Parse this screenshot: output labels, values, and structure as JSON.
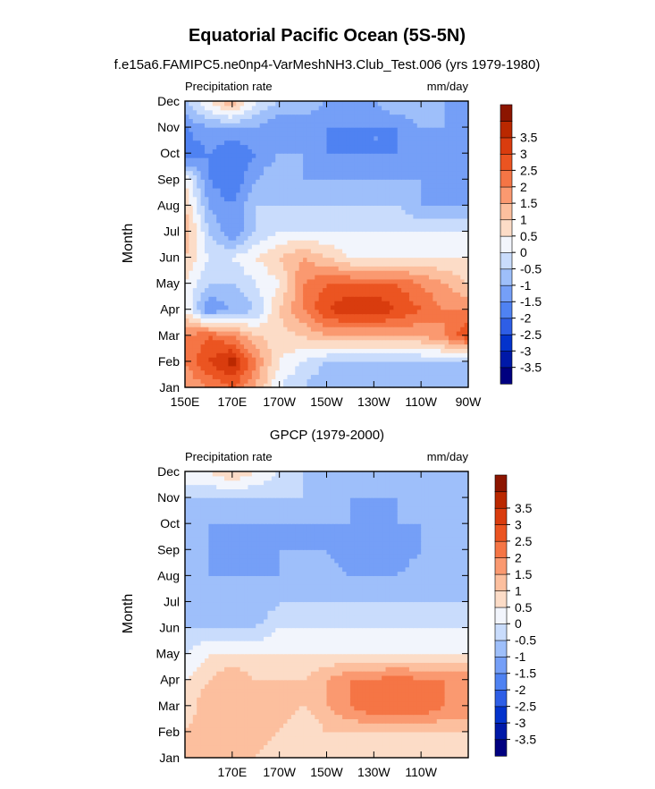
{
  "title": "Equatorial Pacific Ocean (5S-5N)",
  "colors": {
    "levels": [
      "#000080",
      "#0019A8",
      "#0333CC",
      "#2E5EE6",
      "#4F82F2",
      "#759FF7",
      "#9EBFFA",
      "#C9DCFC",
      "#F2F5FC",
      "#FCDCC7",
      "#FCBF9E",
      "#FA9970",
      "#F57545",
      "#EB5421",
      "#D93C0E",
      "#BA2800",
      "#8C1500"
    ],
    "level_bounds": [
      -3.5,
      -3,
      -2.5,
      -2,
      -1.5,
      -1,
      -0.5,
      0,
      0.5,
      1,
      1.5,
      2,
      2.5,
      3,
      3.5
    ]
  },
  "chart_data": [
    {
      "type": "heatmap",
      "title": "f.e15a6.FAMIPC5.ne0np4-VarMeshNH3.Club_Test.006 (yrs 1979-1980)",
      "left_label": "Precipitation rate",
      "right_label": "mm/day",
      "ylabel": "Month",
      "x_ticks": [
        "150E",
        "170E",
        "170W",
        "150W",
        "130W",
        "110W",
        "90W"
      ],
      "y_ticks": [
        "Jan",
        "Feb",
        "Mar",
        "Apr",
        "May",
        "Jun",
        "Jul",
        "Aug",
        "Sep",
        "Oct",
        "Nov",
        "Dec"
      ],
      "colorbar_ticks": [
        "-3.5",
        "-3",
        "-2.5",
        "-2",
        "-1.5",
        "-1",
        "-0.5",
        "0",
        "0.5",
        "1",
        "1.5",
        "2",
        "2.5",
        "3",
        "3.5"
      ],
      "x": [
        150,
        160,
        170,
        180,
        190,
        200,
        210,
        220,
        230,
        240,
        250,
        260,
        270
      ],
      "months": [
        "Jan",
        "Feb",
        "Mar",
        "Apr",
        "May",
        "Jun",
        "Jul",
        "Aug",
        "Sep",
        "Oct",
        "Nov",
        "Dec"
      ],
      "values": [
        [
          1.5,
          2.0,
          2.5,
          1.5,
          0.0,
          -0.5,
          -1.0,
          -1.0,
          -1.0,
          -1.0,
          -1.0,
          -1.0,
          -1.0
        ],
        [
          2.0,
          3.0,
          3.8,
          2.0,
          0.5,
          0.0,
          -0.5,
          -0.5,
          -0.5,
          -0.5,
          -0.5,
          -0.5,
          -0.5
        ],
        [
          2.0,
          2.5,
          2.0,
          1.0,
          0.8,
          1.0,
          1.5,
          1.5,
          1.5,
          1.5,
          1.5,
          2.0,
          3.0
        ],
        [
          0.5,
          -1.5,
          -1.0,
          -0.5,
          1.0,
          2.0,
          3.0,
          3.5,
          3.5,
          3.0,
          2.5,
          2.0,
          2.0
        ],
        [
          0.5,
          -0.5,
          -0.5,
          0.0,
          0.5,
          2.0,
          2.5,
          2.5,
          2.5,
          2.5,
          2.0,
          1.5,
          1.0
        ],
        [
          1.0,
          0.0,
          0.0,
          0.5,
          1.0,
          1.5,
          1.0,
          0.5,
          0.5,
          0.5,
          0.5,
          0.5,
          0.5
        ],
        [
          1.5,
          -0.5,
          -1.5,
          -0.5,
          0.0,
          0.0,
          0.0,
          0.0,
          0.0,
          0.0,
          0.0,
          0.0,
          0.0
        ],
        [
          1.0,
          -1.0,
          -1.5,
          -0.5,
          -0.5,
          -0.5,
          -0.5,
          -0.5,
          -0.5,
          -0.5,
          -1.0,
          -1.0,
          -1.0
        ],
        [
          0.5,
          -1.5,
          -2.0,
          -1.0,
          -0.5,
          -1.0,
          -1.0,
          -1.0,
          -1.0,
          -1.0,
          -1.0,
          -1.0,
          -1.0
        ],
        [
          -2.0,
          -1.5,
          -2.0,
          -1.5,
          -1.0,
          -1.0,
          -1.5,
          -1.5,
          -1.5,
          -1.5,
          -1.0,
          -1.0,
          -1.0
        ],
        [
          -1.5,
          -1.0,
          -1.0,
          -1.0,
          -1.5,
          -1.5,
          -1.5,
          -1.5,
          -1.5,
          -1.5,
          -1.0,
          -1.0,
          -1.0
        ],
        [
          -0.5,
          0.5,
          1.5,
          0.0,
          -0.5,
          -0.5,
          -1.0,
          -1.0,
          -1.0,
          -0.5,
          -0.5,
          -1.0,
          -1.0
        ]
      ]
    },
    {
      "type": "heatmap",
      "title": "GPCP (1979-2000)",
      "left_label": "Precipitation rate",
      "right_label": "mm/day",
      "ylabel": "Month",
      "x_ticks": [
        "170E",
        "170W",
        "150W",
        "130W",
        "110W"
      ],
      "y_ticks": [
        "Jan",
        "Feb",
        "Mar",
        "Apr",
        "May",
        "Jun",
        "Jul",
        "Aug",
        "Sep",
        "Oct",
        "Nov",
        "Dec"
      ],
      "colorbar_ticks": [
        "-3.5",
        "-3",
        "-2.5",
        "-2",
        "-1.5",
        "-1",
        "-0.5",
        "0",
        "0.5",
        "1",
        "1.5",
        "2",
        "2.5",
        "3",
        "3.5"
      ],
      "x": [
        150,
        160,
        170,
        180,
        190,
        200,
        210,
        220,
        230,
        240,
        250,
        260,
        270
      ],
      "months": [
        "Jan",
        "Feb",
        "Mar",
        "Apr",
        "May",
        "Jun",
        "Jul",
        "Aug",
        "Sep",
        "Oct",
        "Nov",
        "Dec"
      ],
      "values": [
        [
          1.0,
          1.5,
          1.5,
          1.0,
          0.5,
          0.5,
          0.5,
          0.5,
          0.5,
          0.5,
          0.5,
          0.5,
          0.5
        ],
        [
          1.0,
          1.5,
          1.5,
          1.5,
          1.0,
          0.5,
          1.0,
          1.0,
          1.0,
          1.0,
          1.0,
          1.0,
          1.0
        ],
        [
          0.5,
          1.5,
          1.5,
          1.5,
          1.5,
          1.0,
          1.5,
          2.0,
          2.5,
          2.5,
          2.5,
          2.0,
          2.0
        ],
        [
          0.5,
          1.0,
          1.5,
          1.0,
          1.0,
          1.0,
          1.5,
          2.0,
          2.0,
          2.5,
          2.0,
          2.0,
          2.0
        ],
        [
          0.0,
          0.5,
          0.5,
          0.5,
          0.5,
          0.5,
          0.5,
          0.5,
          0.5,
          0.5,
          0.5,
          0.5,
          0.5
        ],
        [
          -0.5,
          -0.5,
          -0.5,
          -0.5,
          0.0,
          0.0,
          0.0,
          0.0,
          0.0,
          0.0,
          0.0,
          0.0,
          0.0
        ],
        [
          -1.0,
          -0.5,
          -0.5,
          -1.0,
          -0.5,
          -0.5,
          -0.5,
          -0.5,
          -0.5,
          -0.5,
          -0.5,
          -0.5,
          -0.5
        ],
        [
          -1.0,
          -1.0,
          -1.0,
          -1.0,
          -1.0,
          -0.5,
          -0.5,
          -1.0,
          -1.0,
          -1.0,
          -0.5,
          -0.5,
          -0.5
        ],
        [
          -0.5,
          -1.0,
          -1.5,
          -1.5,
          -1.0,
          -1.0,
          -1.0,
          -1.5,
          -1.5,
          -1.5,
          -1.0,
          -0.5,
          -0.5
        ],
        [
          -0.5,
          -1.0,
          -1.0,
          -1.0,
          -1.0,
          -1.0,
          -1.0,
          -1.0,
          -1.0,
          -1.0,
          -1.0,
          -1.0,
          -1.0
        ],
        [
          -0.5,
          -0.5,
          -0.5,
          -0.5,
          -0.5,
          -0.5,
          -0.5,
          -1.0,
          -1.0,
          -1.0,
          -0.5,
          -0.5,
          -0.5
        ],
        [
          0.5,
          0.5,
          1.0,
          0.5,
          0.0,
          -0.5,
          -0.5,
          -0.5,
          -0.5,
          -0.5,
          -0.5,
          -0.5,
          -0.5
        ]
      ]
    }
  ]
}
